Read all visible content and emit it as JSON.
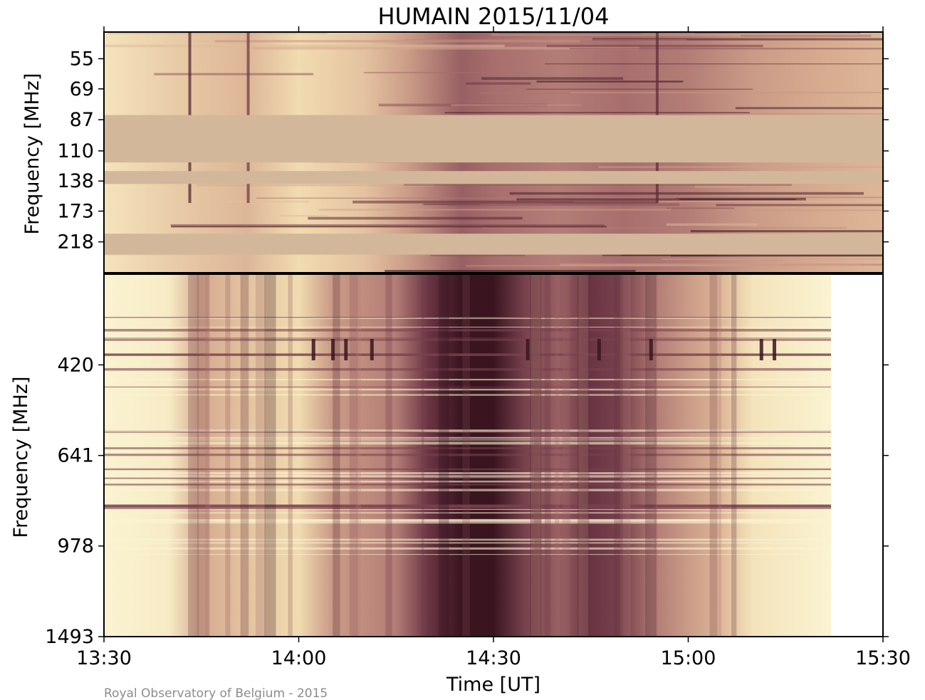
{
  "chart_data": {
    "type": "heatmap",
    "title": "HUMAIN 2015/11/04",
    "xlabel": "Time [UT]",
    "credit": "Royal Observatory of Belgium - 2015",
    "x_ticks": [
      "13:30",
      "14:00",
      "14:30",
      "15:00",
      "15:30"
    ],
    "xlim": [
      "13:30",
      "15:30"
    ],
    "colormap": [
      "#fdfbdc",
      "#f1dbb0",
      "#d6aa8f",
      "#a76e6d",
      "#6a3443",
      "#2a0a14"
    ],
    "panels": [
      {
        "name": "upper",
        "ylabel": "Frequency [MHz]",
        "y_ticks": [
          "55",
          "69",
          "87",
          "110",
          "138",
          "173",
          "218"
        ],
        "ylim": [
          45,
          275
        ],
        "masked_color": "#d3b79a",
        "masked_bands_mhz": [
          [
            84,
            120
          ],
          [
            128,
            141
          ],
          [
            205,
            240
          ]
        ],
        "activity_profile": {
          "times": [
            "13:30",
            "13:45",
            "13:52",
            "14:00",
            "14:10",
            "14:17",
            "14:25",
            "14:30",
            "14:40",
            "14:50",
            "15:00",
            "15:10",
            "15:20",
            "15:30"
          ],
          "intensity": [
            0.15,
            0.3,
            0.35,
            0.2,
            0.3,
            0.45,
            0.65,
            0.6,
            0.55,
            0.6,
            0.55,
            0.45,
            0.4,
            0.35
          ]
        }
      },
      {
        "name": "lower",
        "ylabel": "Frequency [MHz]",
        "y_ticks": [
          "420",
          "641",
          "978",
          "1493"
        ],
        "ylim": [
          275,
          1493
        ],
        "data_end_time": "15:22",
        "activity_profile": {
          "times": [
            "13:30",
            "13:40",
            "13:45",
            "13:52",
            "14:00",
            "14:05",
            "14:10",
            "14:15",
            "14:20",
            "14:25",
            "14:30",
            "14:35",
            "14:40",
            "14:45",
            "14:50",
            "14:55",
            "15:00",
            "15:05",
            "15:10",
            "15:22"
          ],
          "intensity": [
            0.05,
            0.1,
            0.4,
            0.3,
            0.2,
            0.45,
            0.5,
            0.55,
            0.8,
            0.95,
            0.95,
            0.75,
            0.65,
            0.8,
            0.75,
            0.55,
            0.45,
            0.35,
            0.15,
            0.05
          ]
        }
      }
    ]
  }
}
